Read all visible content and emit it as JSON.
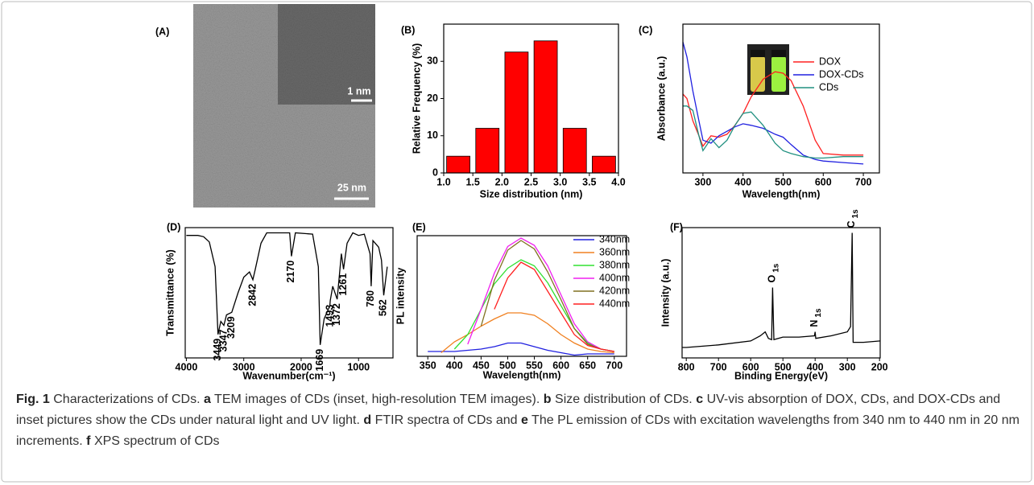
{
  "panels": {
    "A": {
      "label": "(A)",
      "scale_inset": "1 nm",
      "scale_main": "25 nm"
    }
  },
  "chart_data": [
    {
      "type": "histogram",
      "label": "(B)",
      "xlabel": "Size distribution (nm)",
      "ylabel": "Relative Frequency (%)",
      "bins": [
        1.0,
        1.5,
        2.0,
        2.5,
        3.0,
        3.5,
        4.0
      ],
      "values": [
        4.5,
        12,
        32.5,
        35.5,
        12,
        4.5
      ],
      "color": "#ff0000",
      "xlim": [
        1.0,
        4.0
      ],
      "xticks": [
        {
          "value": 1.0,
          "label": "1.0"
        },
        1.5,
        {
          "value": 2.0,
          "label": "2.0"
        },
        2.5,
        {
          "value": 3.0,
          "label": "3.0"
        },
        3.5,
        {
          "value": 4.0,
          "label": "4.0"
        }
      ],
      "ylim": [
        0,
        40
      ],
      "yticks": [
        0,
        10,
        20,
        30
      ]
    },
    {
      "type": "line",
      "label": "(C)",
      "xlabel": "Wavelength(nm)",
      "ylabel": "Absorbance (a.u.)",
      "x": [
        250,
        260,
        275,
        290,
        300,
        320,
        340,
        360,
        380,
        400,
        420,
        450,
        480,
        500,
        520,
        550,
        580,
        600,
        650,
        700
      ],
      "series": [
        {
          "name": "DOX",
          "color": "#ff2020",
          "values": [
            53,
            50,
            35,
            25,
            18,
            25,
            24,
            26,
            32,
            40,
            51,
            63,
            68,
            67,
            62,
            45,
            22,
            13,
            12,
            12
          ]
        },
        {
          "name": "DOX-CDs",
          "color": "#2020e0",
          "values": [
            88,
            78,
            55,
            35,
            22,
            20,
            25,
            28,
            31,
            33,
            32,
            30,
            26,
            24,
            19,
            12,
            9,
            8,
            7,
            6
          ]
        },
        {
          "name": "CDs",
          "color": "#209080",
          "values": [
            45,
            45,
            42,
            25,
            15,
            23,
            17,
            22,
            32,
            40,
            41,
            32,
            20,
            15,
            13,
            11,
            10,
            10,
            11,
            11
          ]
        }
      ],
      "legend": "upper right",
      "xlim": [
        250,
        740
      ],
      "xticks": [
        300,
        400,
        500,
        600,
        700
      ],
      "ylim": [
        0,
        100
      ]
    },
    {
      "type": "line",
      "label": "(D)",
      "xlabel": "Wavenumber(cm⁻¹)",
      "ylabel": "Transmittance (%)",
      "x": [
        4000,
        3800,
        3700,
        3600,
        3500,
        3449,
        3400,
        3347,
        3300,
        3209,
        3100,
        3000,
        2900,
        2842,
        2800,
        2700,
        2600,
        2200,
        2170,
        2100,
        1800,
        1700,
        1669,
        1600,
        1500,
        1493,
        1450,
        1372,
        1300,
        1261,
        1200,
        1100,
        1000,
        900,
        800,
        780,
        750,
        650,
        600,
        562,
        500
      ],
      "series": [
        {
          "color": "#000000",
          "values": [
            94,
            94,
            93,
            89,
            70,
            18,
            28,
            25,
            33,
            35,
            50,
            62,
            66,
            60,
            68,
            88,
            96,
            96,
            78,
            96,
            95,
            70,
            10,
            30,
            40,
            44,
            55,
            45,
            80,
            68,
            88,
            96,
            94,
            95,
            80,
            55,
            90,
            85,
            75,
            48,
            70
          ]
        }
      ],
      "peak_labels": [
        3449,
        3347,
        3209,
        2842,
        2170,
        1669,
        1493,
        1372,
        1261,
        780,
        562
      ],
      "xlim": [
        4020,
        400
      ],
      "xticks": [
        4000,
        3000,
        2000,
        1000
      ],
      "ylim": [
        0,
        100
      ]
    },
    {
      "type": "line",
      "label": "(E)",
      "xlabel": "Wavelength(nm)",
      "ylabel": "PL intensity",
      "x": [
        350,
        375,
        400,
        425,
        450,
        475,
        500,
        525,
        550,
        575,
        600,
        625,
        650,
        675,
        700
      ],
      "series": [
        {
          "name": "340nm",
          "color": "#2020e0",
          "values": [
            4,
            4,
            4,
            5,
            6,
            8,
            11,
            11,
            8,
            5,
            3,
            1,
            2,
            2,
            2
          ]
        },
        {
          "name": "360nm",
          "color": "#f08020",
          "values": [
            null,
            3,
            12,
            18,
            25,
            31,
            36,
            36,
            34,
            27,
            18,
            11,
            6,
            4,
            3
          ]
        },
        {
          "name": "380nm",
          "color": "#30e030",
          "values": [
            null,
            null,
            6,
            18,
            39,
            60,
            73,
            80,
            75,
            61,
            42,
            23,
            11,
            6,
            4
          ]
        },
        {
          "name": "400nm",
          "color": "#f020f0",
          "values": [
            null,
            null,
            null,
            10,
            39,
            69,
            91,
            98,
            92,
            75,
            51,
            27,
            12,
            6,
            4
          ]
        },
        {
          "name": "420nm",
          "color": "#807020",
          "values": [
            null,
            null,
            null,
            null,
            25,
            63,
            88,
            96,
            89,
            70,
            47,
            23,
            10,
            6,
            4
          ]
        },
        {
          "name": "440nm",
          "color": "#ff2020",
          "values": [
            null,
            null,
            null,
            null,
            null,
            39,
            65,
            78,
            72,
            54,
            36,
            18,
            9,
            6,
            4
          ]
        }
      ],
      "legend": "upper right",
      "xlim": [
        330,
        723
      ],
      "xticks": [
        350,
        400,
        450,
        500,
        550,
        600,
        650,
        700
      ],
      "ylim": [
        0,
        100
      ]
    },
    {
      "type": "line",
      "label": "(F)",
      "xlabel": "Binding Energy(eV)",
      "ylabel": "Intensity (a.u.)",
      "x": [
        813,
        800,
        700,
        600,
        570,
        555,
        545,
        535,
        532,
        528,
        500,
        450,
        402,
        400,
        398,
        350,
        300,
        290,
        285,
        282,
        250,
        198
      ],
      "series": [
        {
          "color": "#000000",
          "values": [
            8,
            8,
            10,
            13,
            17,
            20,
            15,
            14,
            54,
            14,
            16,
            16,
            17,
            20,
            15,
            17,
            20,
            24,
            96,
            12,
            12,
            13
          ]
        }
      ],
      "annotations": [
        {
          "x": 532,
          "text": "O",
          "sub": "1s"
        },
        {
          "x": 400,
          "text": "N",
          "sub": "1s"
        },
        {
          "x": 285,
          "text": "C",
          "sub": "1s"
        }
      ],
      "xlim": [
        813,
        198
      ],
      "xticks": [
        800,
        700,
        600,
        500,
        400,
        300,
        200
      ],
      "ylim": [
        0,
        100
      ]
    }
  ],
  "caption": {
    "figure": "Fig. 1",
    "title": "Characterizations of CDs.",
    "items": [
      {
        "key": "a",
        "text": "TEM images of CDs (inset, high-resolution TEM images)."
      },
      {
        "key": "b",
        "text": "Size distribution of CDs."
      },
      {
        "key": "c",
        "text": "UV-vis absorption of DOX, CDs, and DOX-CDs and inset pictures show the CDs under natural light and UV light."
      },
      {
        "key": "d",
        "text": "FTIR spectra of CDs and"
      },
      {
        "key": "e",
        "text": "The PL emission of CDs with excitation wavelengths from 340 nm to 440 nm in 20 nm increments."
      },
      {
        "key": "f",
        "text": "XPS spectrum of CDs"
      }
    ]
  }
}
